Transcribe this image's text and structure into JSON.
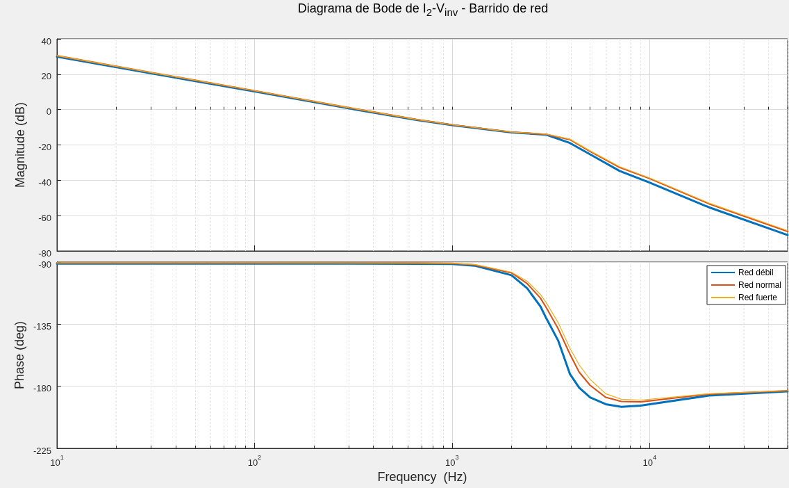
{
  "chart_data": [
    {
      "type": "line",
      "title": "Diagrama de Bode de I$_{2}$-V$_{inv}$ - Barrido de red",
      "ylabel": "Magnitude (dB)",
      "log": "x",
      "grid": true,
      "legend": false,
      "tick_labels": "y",
      "line_style": "solid",
      "marker": "none",
      "x": [
        10,
        30,
        100,
        300,
        660,
        1000,
        2000,
        3000,
        3950,
        5000,
        7050,
        10000,
        20000,
        50000
      ],
      "xlim": [
        10,
        50000
      ],
      "xticks": [
        10,
        100,
        1000,
        10000
      ],
      "ylim": [
        -80,
        40
      ],
      "yticks": [
        -80,
        -60,
        -40,
        -20,
        0,
        20,
        40
      ],
      "series": [
        {
          "color": "#0072bd",
          "values": [
            30,
            20.5,
            10.3,
            0.7,
            -5.8,
            -8.8,
            -12.9,
            -14.2,
            -18.9,
            -25.3,
            -34.7,
            -41.3,
            -55.3,
            -71
          ]
        },
        {
          "color": "#d95319",
          "values": [
            30.5,
            21,
            10.7,
            1.1,
            -5.6,
            -8.6,
            -12.7,
            -14,
            -17,
            -23.7,
            -32.7,
            -39,
            -53.3,
            -69
          ]
        },
        {
          "color": "#edb120",
          "values": [
            30.5,
            21,
            10.7,
            1.1,
            -5.6,
            -8.6,
            -12.7,
            -13.9,
            -16.7,
            -23.3,
            -32.3,
            -38.7,
            -52.9,
            -68.5
          ]
        }
      ]
    },
    {
      "type": "line",
      "xlabel": "Frequency  (Hz)",
      "ylabel": "Phase (deg)",
      "log": "x",
      "grid": true,
      "legend": "top right",
      "line_style": "solid",
      "marker": "none",
      "x": [
        10,
        100,
        660,
        1000,
        1300,
        2000,
        2400,
        2800,
        3000,
        3450,
        3950,
        4400,
        5000,
        6000,
        7200,
        9000,
        20000,
        50000
      ],
      "xlim": [
        10,
        50000
      ],
      "xticks": [
        {
          "value": 10,
          "label": "10$^{1}$"
        },
        {
          "value": 100,
          "label": "10$^{2}$"
        },
        {
          "value": 1000,
          "label": "10$^{3}$"
        },
        {
          "value": 10000,
          "label": "10$^{4}$"
        }
      ],
      "ylim": [
        -225,
        -90
      ],
      "yticks": [
        -225,
        -180,
        -135,
        -90
      ],
      "series": [
        {
          "name": "Red débil",
          "color": "#0072bd",
          "values": [
            -91.1,
            -91.1,
            -91.2,
            -91.4,
            -92.6,
            -99.5,
            -109,
            -122,
            -130.7,
            -147,
            -171,
            -181,
            -188,
            -193,
            -194.9,
            -194,
            -186.7,
            -183.7
          ]
        },
        {
          "name": "Red normal",
          "color": "#d95319",
          "values": [
            -90.6,
            -90.6,
            -90.7,
            -90.9,
            -92,
            -97.8,
            -105.6,
            -116,
            -123,
            -138.4,
            -156.6,
            -169.7,
            -179.3,
            -188,
            -191,
            -191.3,
            -185.7,
            -183.2
          ]
        },
        {
          "name": "Red fuerte",
          "color": "#edb120",
          "values": [
            -90.6,
            -90.6,
            -90.7,
            -90.9,
            -91.7,
            -97.3,
            -103.8,
            -113.4,
            -119.4,
            -134,
            -152.3,
            -164.5,
            -175,
            -185.4,
            -189.4,
            -190,
            -185.4,
            -183.2
          ]
        }
      ]
    }
  ]
}
